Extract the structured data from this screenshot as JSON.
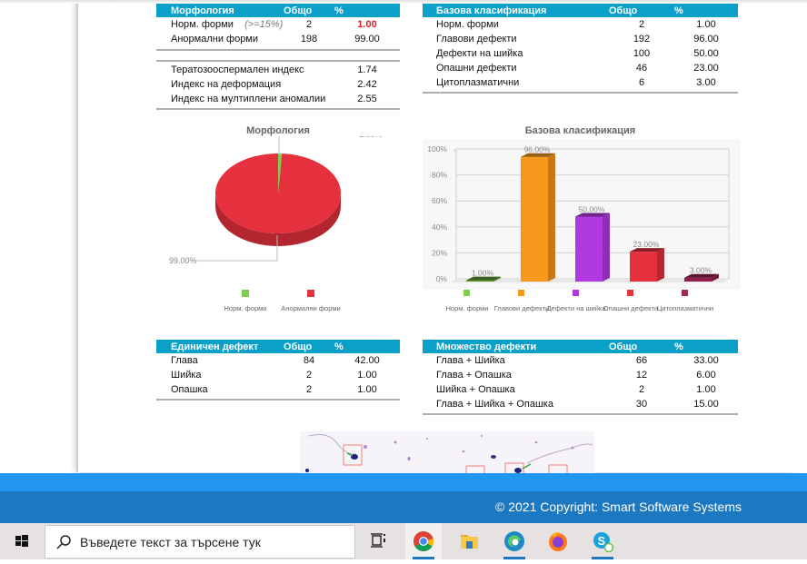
{
  "morphology_table": {
    "headers": [
      "Морфология",
      "Общо",
      "%"
    ],
    "rows": [
      {
        "label": "Норм. форми",
        "hint": "(>=15%)",
        "total": "2",
        "percent": "1.00",
        "highlight": true
      },
      {
        "label": "Анормални форми",
        "hint": "",
        "total": "198",
        "percent": "99.00",
        "highlight": false
      }
    ]
  },
  "indices_table": {
    "rows": [
      {
        "label": "Тератозооспермален индекс",
        "value": "1.74"
      },
      {
        "label": "Индекс на деформация",
        "value": "2.42"
      },
      {
        "label": "Индекс на мултиплени аномалии",
        "value": "2.55"
      }
    ]
  },
  "base_class_table": {
    "headers": [
      "Базова класификация",
      "Общо",
      "%"
    ],
    "rows": [
      {
        "label": "Норм. форми",
        "total": "2",
        "percent": "1.00"
      },
      {
        "label": "Главови дефекти",
        "total": "192",
        "percent": "96.00"
      },
      {
        "label": "Дефекти на шийка",
        "total": "100",
        "percent": "50.00"
      },
      {
        "label": "Опашни дефекти",
        "total": "46",
        "percent": "23.00"
      },
      {
        "label": "Цитоплазматични",
        "total": "6",
        "percent": "3.00"
      }
    ]
  },
  "single_defect_table": {
    "headers": [
      "Единичен дефект",
      "Общо",
      "%"
    ],
    "rows": [
      {
        "label": "Глава",
        "total": "84",
        "percent": "42.00"
      },
      {
        "label": "Шийка",
        "total": "2",
        "percent": "1.00"
      },
      {
        "label": "Опашка",
        "total": "2",
        "percent": "1.00"
      }
    ]
  },
  "multi_defect_table": {
    "headers": [
      "Множество дефекти",
      "Общо",
      "%"
    ],
    "rows": [
      {
        "label": "Глава + Шийка",
        "total": "66",
        "percent": "33.00"
      },
      {
        "label": "Глава + Опашка",
        "total": "12",
        "percent": "6.00"
      },
      {
        "label": "Шийка + Опашка",
        "total": "2",
        "percent": "1.00"
      },
      {
        "label": "Глава + Шийка + Опашка",
        "total": "30",
        "percent": "15.00"
      }
    ]
  },
  "charts": {
    "pie": {
      "type": "pie",
      "title": "Морфология",
      "slices": [
        {
          "label": "Норм. форми",
          "value": 1.0,
          "data_label": "1.00%",
          "color": "#7ed04b"
        },
        {
          "label": "Анормални форми",
          "value": 99.0,
          "data_label": "99.00%",
          "color": "#e5313e"
        }
      ],
      "legend_position": "bottom"
    },
    "bar": {
      "type": "bar",
      "title": "Базова класификация",
      "ylim": [
        0,
        100
      ],
      "yticks": [
        "0%",
        "20%",
        "40%",
        "60%",
        "80%",
        "100%"
      ],
      "grid": true,
      "bars": [
        {
          "label": "Норм. форми",
          "value": 1.0,
          "data_label": "1.00%",
          "color": "#5a9a2e",
          "legend_color": "#7ed04b"
        },
        {
          "label": "Главови дефекти",
          "value": 96.0,
          "data_label": "96.00%",
          "color": "#f7981d",
          "legend_color": "#f7981d"
        },
        {
          "label": "Дефекти на шийка",
          "value": 50.0,
          "data_label": "50.00%",
          "color": "#b03ae0",
          "legend_color": "#b03ae0"
        },
        {
          "label": "Опашни дефекти",
          "value": 23.0,
          "data_label": "23.00%",
          "color": "#e5313e",
          "legend_color": "#e5313e"
        },
        {
          "label": "Цитоплазматични",
          "value": 3.0,
          "data_label": "3.00%",
          "color": "#8e1f4e",
          "legend_color": "#a0295a"
        }
      ],
      "legend_position": "bottom"
    }
  },
  "footer": {
    "copyright": "© 2021 Copyright: Smart Software Systems"
  },
  "taskbar": {
    "search_placeholder": "Въведете текст за търсене тук",
    "apps": [
      "task-view",
      "chrome",
      "file-explorer",
      "edge",
      "firefox",
      "skype"
    ]
  },
  "colors": {
    "table_header": "#0aa0c8",
    "footer": "#1c78c0",
    "bluebar": "#2196f0",
    "warning": "#e02020"
  }
}
